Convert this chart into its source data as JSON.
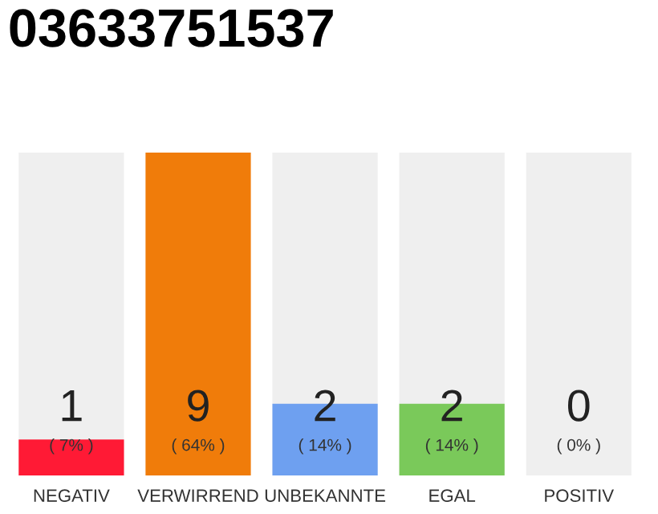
{
  "chart_data": {
    "type": "bar",
    "title": "03633751537",
    "categories": [
      "NEGATIV",
      "VERWIRREND",
      "UNBEKANNTE",
      "EGAL",
      "POSITIV"
    ],
    "values": [
      1,
      9,
      2,
      2,
      0
    ],
    "colors": [
      "#ff1a35",
      "#f07c0a",
      "#6ea0f0",
      "#7ac95a",
      "#aaaaaa"
    ],
    "data_labels": true,
    "bands": [
      {
        "axis": "x",
        "from": "NEGATIV",
        "to": "NEGATIV",
        "color": "#efefef"
      },
      {
        "axis": "x",
        "from": "UNBEKANNTE",
        "to": "UNBEKANNTE",
        "color": "#efefef"
      },
      {
        "axis": "x",
        "from": "EGAL",
        "to": "EGAL",
        "color": "#efefef"
      },
      {
        "axis": "x",
        "from": "POSITIV",
        "to": "POSITIV",
        "color": "#efefef"
      }
    ],
    "annotations": [
      "( 7% )",
      "( 64% )",
      "( 14% )",
      "( 14% )",
      "( 0% )"
    ],
    "grid": false,
    "legend": false
  }
}
